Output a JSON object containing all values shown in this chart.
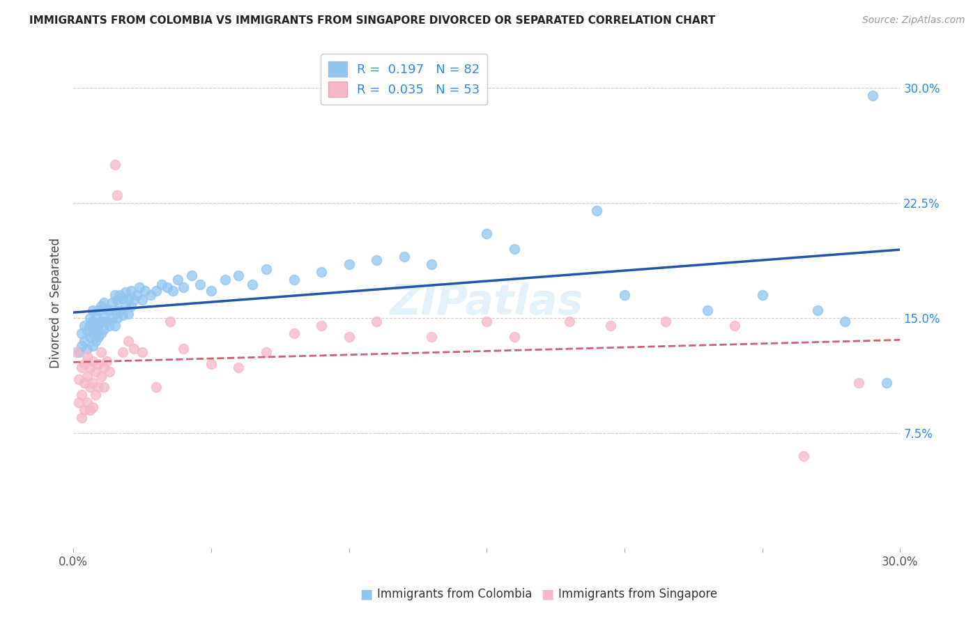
{
  "title": "IMMIGRANTS FROM COLOMBIA VS IMMIGRANTS FROM SINGAPORE DIVORCED OR SEPARATED CORRELATION CHART",
  "source": "Source: ZipAtlas.com",
  "xlabel_bottom": [
    "Immigrants from Colombia",
    "Immigrants from Singapore"
  ],
  "ylabel": "Divorced or Separated",
  "xlim": [
    0.0,
    0.3
  ],
  "ylim": [
    0.0,
    0.32
  ],
  "xticks": [
    0.0,
    0.05,
    0.1,
    0.15,
    0.2,
    0.25,
    0.3
  ],
  "xticklabels": [
    "0.0%",
    "",
    "",
    "",
    "",
    "",
    "30.0%"
  ],
  "yticks": [
    0.0,
    0.075,
    0.15,
    0.225,
    0.3
  ],
  "yticklabels": [
    "",
    "7.5%",
    "15.0%",
    "22.5%",
    "30.0%"
  ],
  "colombia_R": 0.197,
  "colombia_N": 82,
  "singapore_R": 0.035,
  "singapore_N": 53,
  "colombia_color": "#92c5f0",
  "singapore_color": "#f5b8c8",
  "colombia_line_color": "#2255aa",
  "singapore_line_color": "#d06070",
  "watermark": "ZIPatlas",
  "colombia_x": [
    0.002,
    0.003,
    0.003,
    0.004,
    0.004,
    0.005,
    0.005,
    0.006,
    0.006,
    0.006,
    0.007,
    0.007,
    0.007,
    0.007,
    0.008,
    0.008,
    0.008,
    0.009,
    0.009,
    0.009,
    0.01,
    0.01,
    0.01,
    0.011,
    0.011,
    0.011,
    0.012,
    0.012,
    0.013,
    0.013,
    0.014,
    0.014,
    0.015,
    0.015,
    0.015,
    0.016,
    0.016,
    0.017,
    0.017,
    0.018,
    0.018,
    0.019,
    0.019,
    0.02,
    0.02,
    0.021,
    0.021,
    0.022,
    0.023,
    0.024,
    0.025,
    0.026,
    0.028,
    0.03,
    0.032,
    0.034,
    0.036,
    0.038,
    0.04,
    0.043,
    0.046,
    0.05,
    0.055,
    0.06,
    0.065,
    0.07,
    0.08,
    0.09,
    0.1,
    0.11,
    0.12,
    0.13,
    0.15,
    0.16,
    0.19,
    0.2,
    0.23,
    0.25,
    0.27,
    0.28,
    0.29,
    0.295
  ],
  "colombia_y": [
    0.128,
    0.132,
    0.14,
    0.135,
    0.145,
    0.13,
    0.142,
    0.138,
    0.145,
    0.15,
    0.132,
    0.14,
    0.148,
    0.155,
    0.135,
    0.143,
    0.152,
    0.138,
    0.146,
    0.155,
    0.14,
    0.148,
    0.158,
    0.143,
    0.15,
    0.16,
    0.148,
    0.156,
    0.145,
    0.155,
    0.15,
    0.16,
    0.145,
    0.155,
    0.165,
    0.15,
    0.162,
    0.155,
    0.165,
    0.152,
    0.163,
    0.158,
    0.167,
    0.153,
    0.163,
    0.158,
    0.168,
    0.162,
    0.165,
    0.17,
    0.162,
    0.168,
    0.165,
    0.168,
    0.172,
    0.17,
    0.168,
    0.175,
    0.17,
    0.178,
    0.172,
    0.168,
    0.175,
    0.178,
    0.172,
    0.182,
    0.175,
    0.18,
    0.185,
    0.188,
    0.19,
    0.185,
    0.205,
    0.195,
    0.22,
    0.165,
    0.155,
    0.165,
    0.155,
    0.148,
    0.295,
    0.108
  ],
  "singapore_x": [
    0.001,
    0.002,
    0.002,
    0.003,
    0.003,
    0.003,
    0.004,
    0.004,
    0.004,
    0.005,
    0.005,
    0.005,
    0.006,
    0.006,
    0.006,
    0.007,
    0.007,
    0.007,
    0.008,
    0.008,
    0.009,
    0.009,
    0.01,
    0.01,
    0.011,
    0.011,
    0.012,
    0.013,
    0.015,
    0.016,
    0.018,
    0.02,
    0.022,
    0.025,
    0.03,
    0.035,
    0.04,
    0.05,
    0.06,
    0.07,
    0.08,
    0.09,
    0.1,
    0.11,
    0.13,
    0.15,
    0.16,
    0.18,
    0.195,
    0.215,
    0.24,
    0.265,
    0.285
  ],
  "singapore_y": [
    0.128,
    0.11,
    0.095,
    0.118,
    0.1,
    0.085,
    0.12,
    0.108,
    0.09,
    0.125,
    0.112,
    0.095,
    0.118,
    0.105,
    0.09,
    0.122,
    0.108,
    0.092,
    0.115,
    0.1,
    0.12,
    0.105,
    0.128,
    0.112,
    0.118,
    0.105,
    0.122,
    0.115,
    0.25,
    0.23,
    0.128,
    0.135,
    0.13,
    0.128,
    0.105,
    0.148,
    0.13,
    0.12,
    0.118,
    0.128,
    0.14,
    0.145,
    0.138,
    0.148,
    0.138,
    0.148,
    0.138,
    0.148,
    0.145,
    0.148,
    0.145,
    0.06,
    0.108
  ]
}
